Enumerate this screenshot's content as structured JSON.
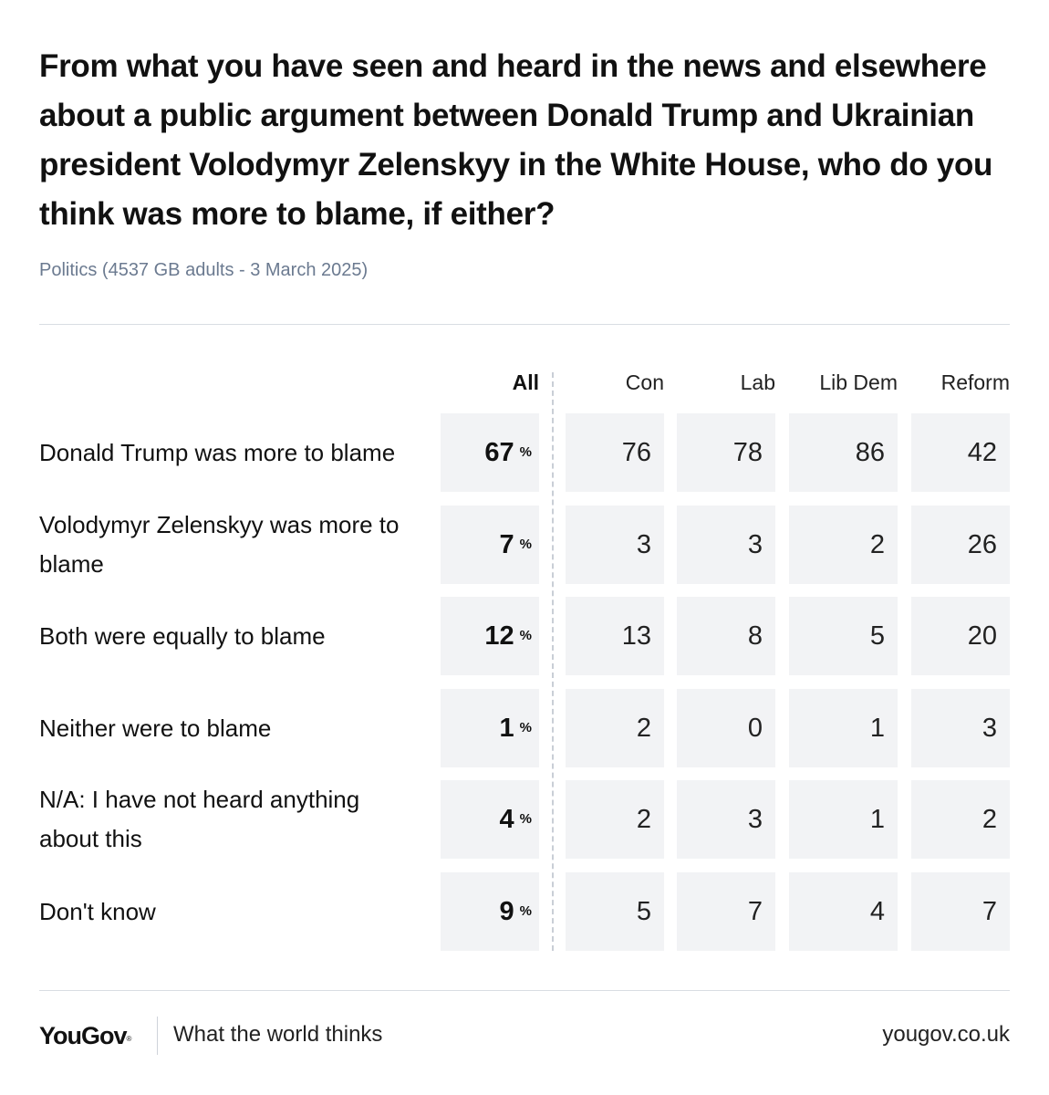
{
  "title": "From what you have seen and heard in the news and elsewhere about a public argument between Donald Trump and Ukrainian president Volodymyr Zelenskyy in the White House, who do you think was more to blame, if either?",
  "subtitle": "Politics (4537 GB adults - 3 March 2025)",
  "footer": {
    "logo": "YouGov",
    "logo_mark": "®",
    "tagline": "What the world thinks",
    "url": "yougov.co.uk"
  },
  "colors": {
    "cell_background": "#f2f3f5",
    "subtitle": "#6b7a90",
    "divider": "#d9dde3"
  },
  "chart_data": {
    "type": "table",
    "title": "From what you have seen and heard in the news and elsewhere about a public argument between Donald Trump and Ukrainian president Volodymyr Zelenskyy in the White House, who do you think was more to blame, if either?",
    "columns": [
      "All",
      "Con",
      "Lab",
      "Lib Dem",
      "Reform"
    ],
    "unit_symbol": "%",
    "rows": [
      {
        "label": "Donald Trump was more to blame",
        "values": [
          67,
          76,
          78,
          86,
          42
        ]
      },
      {
        "label": "Volodymyr Zelenskyy was more to blame",
        "values": [
          7,
          3,
          3,
          2,
          26
        ]
      },
      {
        "label": "Both were equally to blame",
        "values": [
          12,
          13,
          8,
          5,
          20
        ]
      },
      {
        "label": "Neither were to blame",
        "values": [
          1,
          2,
          0,
          1,
          3
        ]
      },
      {
        "label": "N/A: I have not heard anything about this",
        "values": [
          4,
          2,
          3,
          1,
          2
        ]
      },
      {
        "label": "Don't know",
        "values": [
          9,
          5,
          7,
          4,
          7
        ]
      }
    ]
  }
}
